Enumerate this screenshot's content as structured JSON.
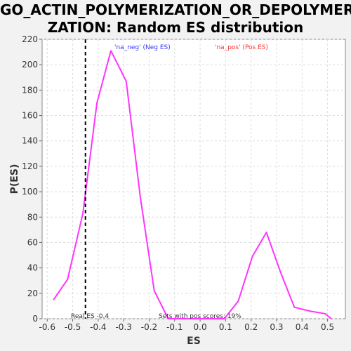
{
  "chart_data": {
    "type": "line",
    "title_line_1": "GO_ACTIN_POLYMERIZATION_OR_DEPOLYMERI",
    "title_line_2": "ZATION: Random ES distribution",
    "xlabel": "ES",
    "ylabel": "P(ES)",
    "xlim": [
      -0.62,
      0.57
    ],
    "ylim": [
      0,
      220
    ],
    "x_ticks": [
      -0.6,
      -0.5,
      -0.4,
      -0.3,
      -0.2,
      -0.1,
      0.0,
      0.1,
      0.2,
      0.3,
      0.4,
      0.5
    ],
    "x_tick_labels": [
      "-0.6",
      "-0.5",
      "-0.4",
      "-0.3",
      "-0.2",
      "-0.1",
      "0.0",
      "0.1",
      "0.2",
      "0.3",
      "0.4",
      "0.5"
    ],
    "y_ticks": [
      0,
      20,
      40,
      60,
      80,
      100,
      120,
      140,
      160,
      180,
      200,
      220
    ],
    "y_tick_labels": [
      "0",
      "20",
      "40",
      "60",
      "80",
      "100",
      "120",
      "140",
      "160",
      "180",
      "200",
      "220"
    ],
    "grid": true,
    "series": [
      {
        "color": "#ff33ff",
        "x": [
          -0.575,
          -0.52,
          -0.46,
          -0.405,
          -0.35,
          -0.29,
          -0.235,
          -0.18,
          -0.125,
          -0.07,
          -0.015,
          0.04,
          0.095,
          0.15,
          0.205,
          0.26,
          0.315,
          0.37,
          0.43,
          0.49,
          0.515
        ],
        "y": [
          15,
          31,
          83,
          170,
          211,
          187,
          96,
          22,
          0,
          0,
          0,
          0,
          0,
          14,
          49,
          68,
          37,
          9,
          6,
          4,
          0
        ]
      }
    ],
    "real_es": -0.45,
    "legend": {
      "neg_label": "'na_neg' (Neg ES)",
      "neg_color": "#3333ff",
      "pos_label": "'na_pos' (Pos ES)",
      "pos_color": "#ff3333"
    },
    "annotations": {
      "real_es_label": "Real ES -0.4",
      "pos_scores_label": "Sets with pos scores: 19%"
    }
  }
}
